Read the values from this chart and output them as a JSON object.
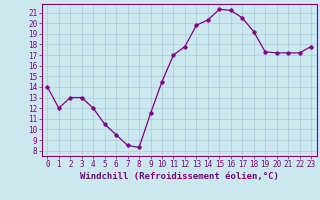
{
  "x": [
    0,
    1,
    2,
    3,
    4,
    5,
    6,
    7,
    8,
    9,
    10,
    11,
    12,
    13,
    14,
    15,
    16,
    17,
    18,
    19,
    20,
    21,
    22,
    23
  ],
  "y": [
    14,
    12,
    13,
    13,
    12,
    10.5,
    9.5,
    8.5,
    8.3,
    11.5,
    14.5,
    17,
    17.8,
    19.8,
    20.3,
    21.3,
    21.2,
    20.5,
    19.2,
    17.3,
    17.2,
    17.2,
    17.2,
    17.8
  ],
  "line_color": "#800080",
  "marker_color": "#800080",
  "bg_color": "#cce8ef",
  "grid_color": "#aacdd6",
  "axis_color": "#800080",
  "xlabel": "Windchill (Refroidissement éolien,°C)",
  "xlim": [
    -0.5,
    23.5
  ],
  "ylim": [
    7.5,
    21.8
  ],
  "yticks": [
    8,
    9,
    10,
    11,
    12,
    13,
    14,
    15,
    16,
    17,
    18,
    19,
    20,
    21
  ],
  "xticks": [
    0,
    1,
    2,
    3,
    4,
    5,
    6,
    7,
    8,
    9,
    10,
    11,
    12,
    13,
    14,
    15,
    16,
    17,
    18,
    19,
    20,
    21,
    22,
    23
  ],
  "tick_fontsize": 5.5,
  "xlabel_fontsize": 6.5,
  "marker_size": 2.5,
  "linewidth": 0.9
}
